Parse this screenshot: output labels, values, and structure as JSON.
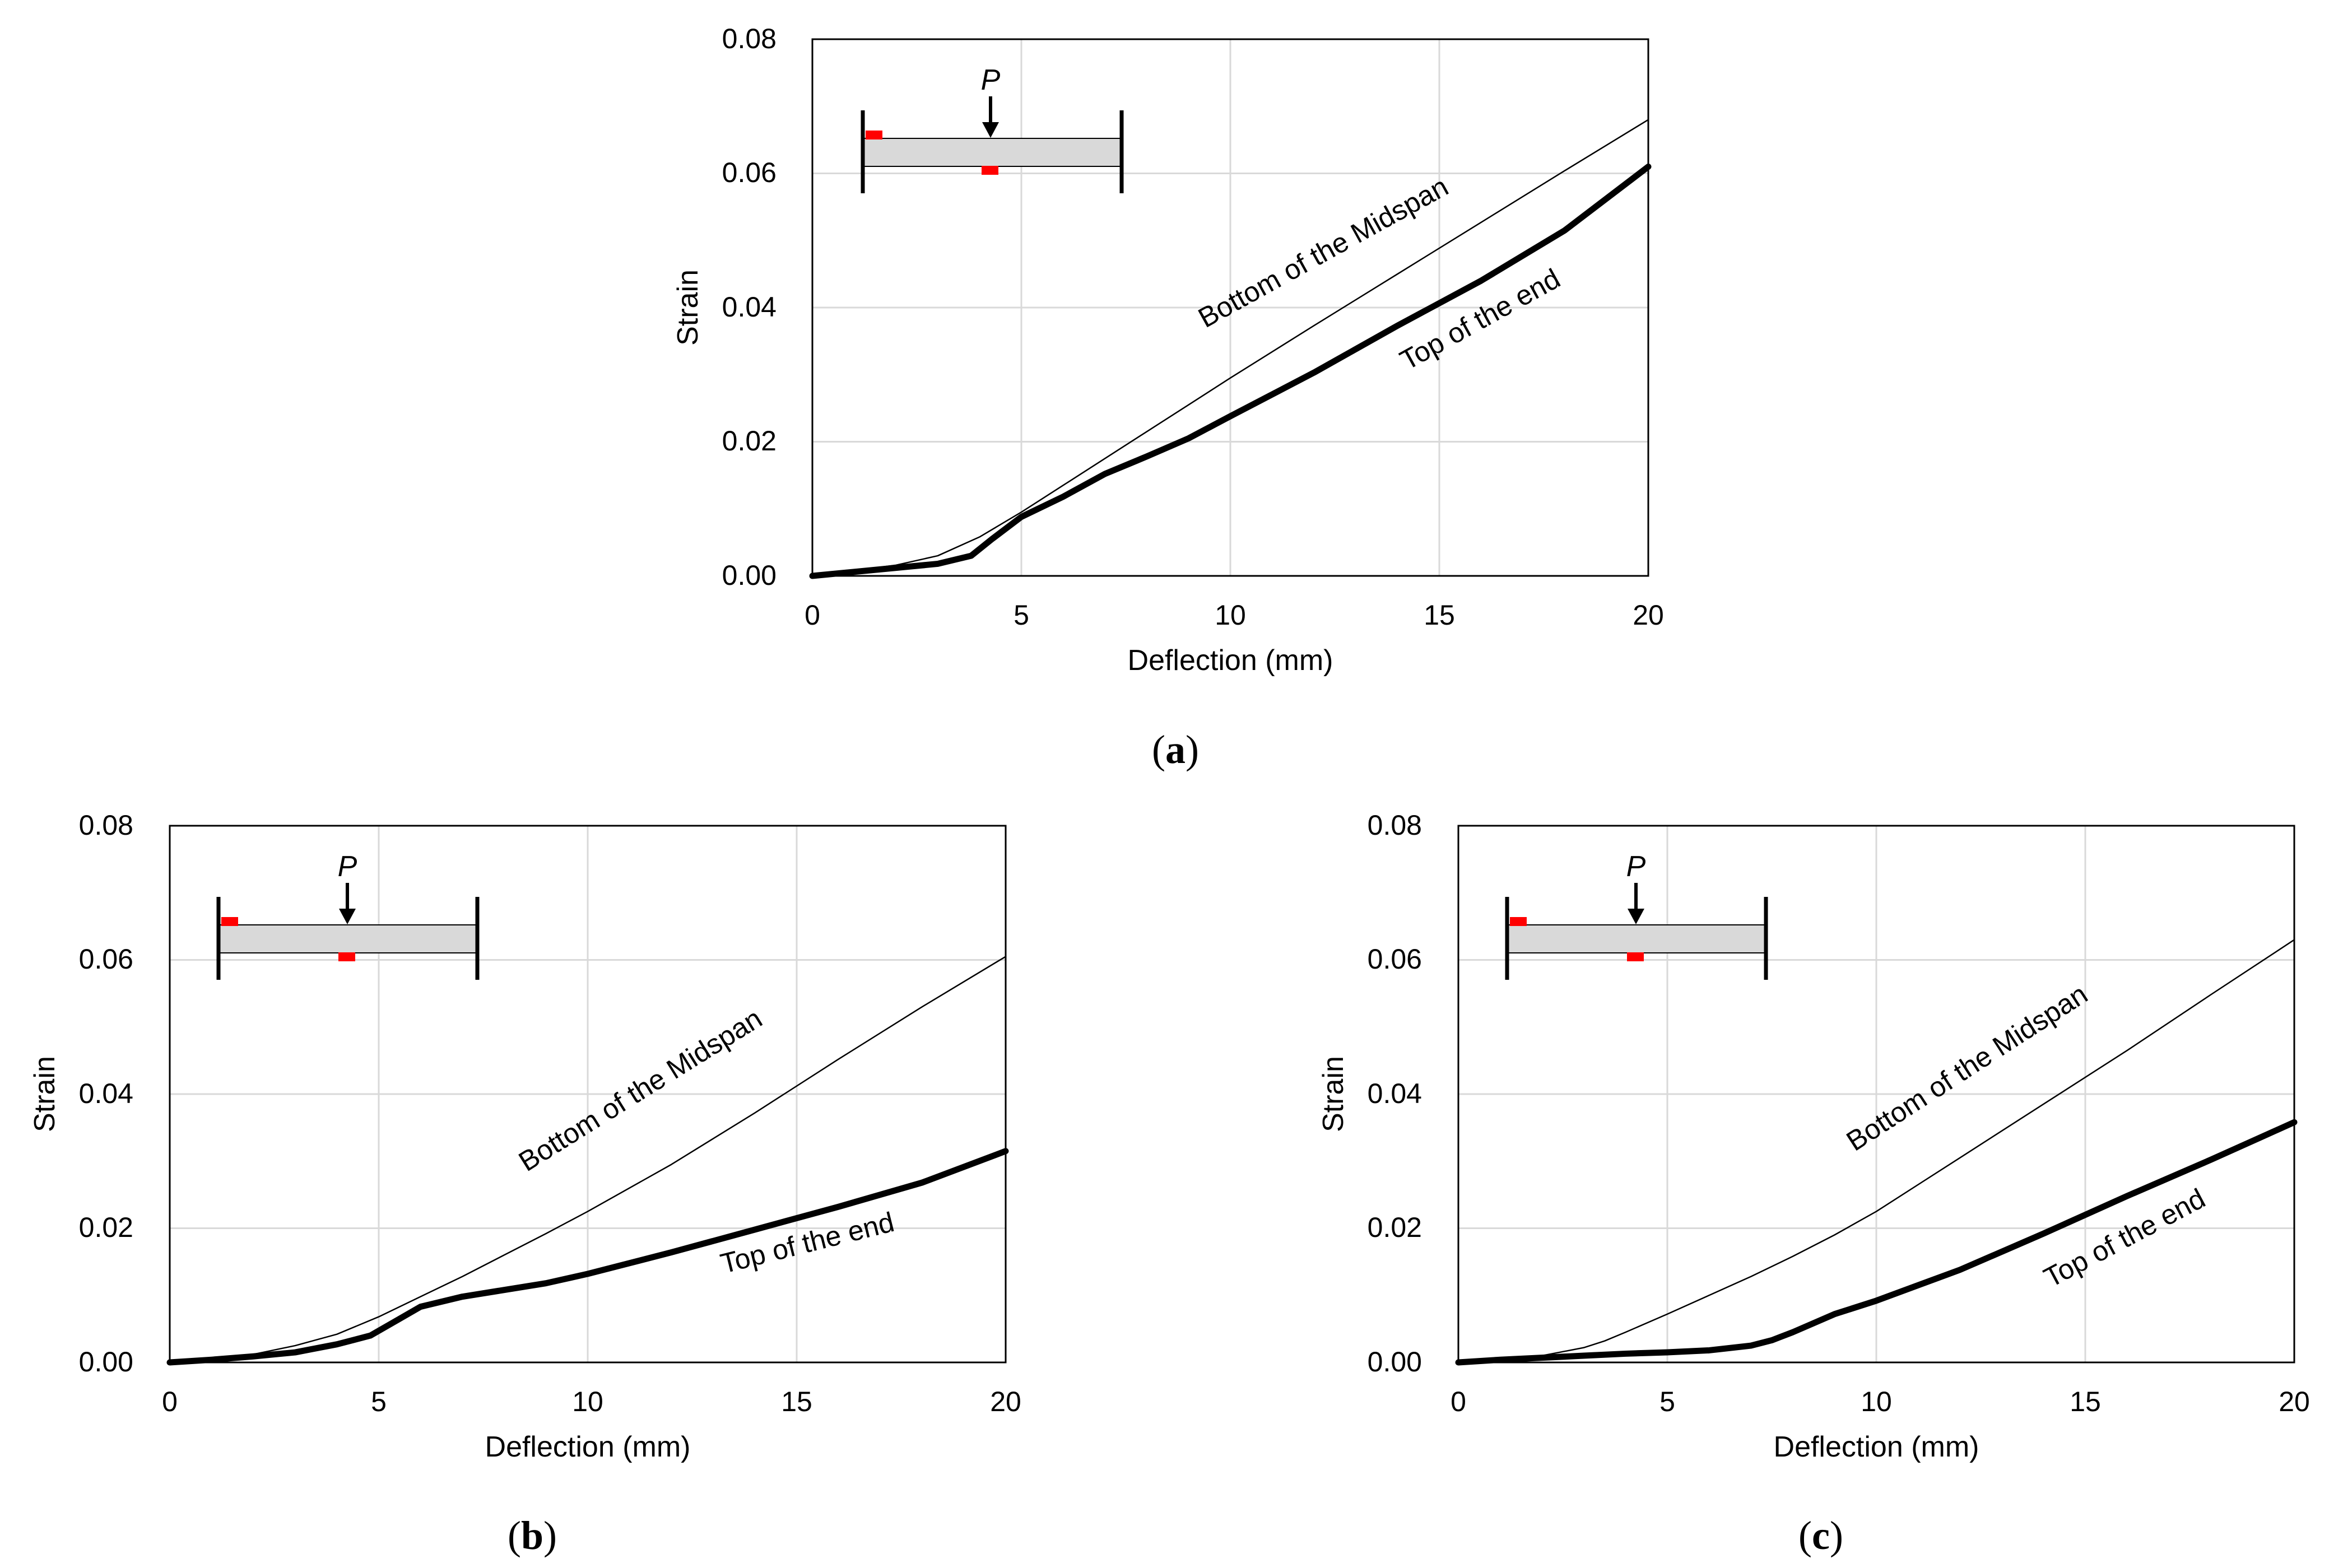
{
  "colors": {
    "grid": "#d9d9d9",
    "line": "#000000",
    "beam_fill": "#d9d9d9",
    "gauge": "#ff0000"
  },
  "chart_data": [
    {
      "id": "a",
      "type": "line",
      "caption": "a",
      "xlabel": "Deflection (mm)",
      "ylabel": "Strain",
      "xlim": [
        0,
        20
      ],
      "ylim": [
        0,
        0.08
      ],
      "xticks": [
        0,
        5,
        10,
        15,
        20
      ],
      "yticks": [
        0,
        0.02,
        0.04,
        0.06,
        0.08
      ],
      "xtick_labels": [
        "0",
        "5",
        "10",
        "15",
        "20"
      ],
      "ytick_labels": [
        "0.00",
        "0.02",
        "0.04",
        "0.06",
        "0.08"
      ],
      "grid": true,
      "inset": {
        "load_label": "P"
      },
      "series": [
        {
          "name": "Bottom of the Midspan",
          "style": "thin",
          "x": [
            0,
            1,
            2,
            3,
            4,
            5,
            6,
            7,
            8,
            9,
            10,
            12,
            14,
            16,
            18,
            20
          ],
          "y": [
            0,
            0.0008,
            0.0016,
            0.003,
            0.0058,
            0.0095,
            0.0135,
            0.0175,
            0.0215,
            0.0255,
            0.0295,
            0.0373,
            0.045,
            0.0527,
            0.0604,
            0.068
          ]
        },
        {
          "name": "Top of the end",
          "style": "thick",
          "x": [
            0,
            1,
            2,
            3,
            3.8,
            4.3,
            5,
            6,
            7,
            8,
            9,
            10,
            12,
            14,
            16,
            18,
            20
          ],
          "y": [
            0,
            0.0006,
            0.0012,
            0.0018,
            0.003,
            0.0055,
            0.0088,
            0.0118,
            0.0152,
            0.0178,
            0.0205,
            0.0238,
            0.0303,
            0.0373,
            0.044,
            0.0515,
            0.061
          ]
        }
      ],
      "annotations": [
        "Bottom of the Midspan",
        "Top of the end"
      ]
    },
    {
      "id": "b",
      "type": "line",
      "caption": "b",
      "xlabel": "Deflection (mm)",
      "ylabel": "Strain",
      "xlim": [
        0,
        20
      ],
      "ylim": [
        0,
        0.08
      ],
      "xticks": [
        0,
        5,
        10,
        15,
        20
      ],
      "yticks": [
        0,
        0.02,
        0.04,
        0.06,
        0.08
      ],
      "xtick_labels": [
        "0",
        "5",
        "10",
        "15",
        "20"
      ],
      "ytick_labels": [
        "0.00",
        "0.02",
        "0.04",
        "0.06",
        "0.08"
      ],
      "grid": true,
      "inset": {
        "load_label": "P"
      },
      "series": [
        {
          "name": "Bottom of the Midspan",
          "style": "thin",
          "x": [
            0,
            1,
            2,
            3,
            4,
            5,
            6,
            7,
            8,
            9,
            10,
            12,
            14,
            16,
            18,
            20
          ],
          "y": [
            0,
            0.0005,
            0.0012,
            0.0025,
            0.0042,
            0.0068,
            0.0098,
            0.0128,
            0.016,
            0.0192,
            0.0225,
            0.0295,
            0.0372,
            0.0452,
            0.053,
            0.0605
          ]
        },
        {
          "name": "Top of the end",
          "style": "thick",
          "x": [
            0,
            1,
            2,
            3,
            4,
            4.8,
            5.5,
            6,
            7,
            8,
            9,
            10,
            12,
            14,
            16,
            18,
            20
          ],
          "y": [
            0,
            0.0004,
            0.0009,
            0.0015,
            0.0027,
            0.004,
            0.0065,
            0.0083,
            0.0098,
            0.0108,
            0.0118,
            0.0132,
            0.0164,
            0.0198,
            0.0232,
            0.0268,
            0.0315
          ]
        }
      ],
      "annotations": [
        "Bottom of the Midspan",
        "Top of the end"
      ]
    },
    {
      "id": "c",
      "type": "line",
      "caption": "c",
      "xlabel": "Deflection (mm)",
      "ylabel": "Strain",
      "xlim": [
        0,
        20
      ],
      "ylim": [
        0,
        0.08
      ],
      "xticks": [
        0,
        5,
        10,
        15,
        20
      ],
      "yticks": [
        0,
        0.02,
        0.04,
        0.06,
        0.08
      ],
      "xtick_labels": [
        "0",
        "5",
        "10",
        "15",
        "20"
      ],
      "ytick_labels": [
        "0.00",
        "0.02",
        "0.04",
        "0.06",
        "0.08"
      ],
      "grid": true,
      "inset": {
        "load_label": "P"
      },
      "series": [
        {
          "name": "Bottom of the Midspan",
          "style": "thin",
          "x": [
            0,
            1,
            2,
            3,
            3.5,
            4,
            5,
            6,
            7,
            8,
            9,
            10,
            12,
            14,
            16,
            18,
            20
          ],
          "y": [
            0,
            0.0004,
            0.001,
            0.0022,
            0.0032,
            0.0045,
            0.0072,
            0.01,
            0.0128,
            0.0158,
            0.019,
            0.0225,
            0.0305,
            0.0385,
            0.0465,
            0.0548,
            0.063
          ]
        },
        {
          "name": "Top of the end",
          "style": "thick",
          "x": [
            0,
            1,
            2,
            3,
            4,
            5,
            6,
            7,
            7.5,
            8,
            9,
            10,
            12,
            14,
            16,
            18,
            20
          ],
          "y": [
            0,
            0.0004,
            0.0007,
            0.001,
            0.0013,
            0.0015,
            0.0018,
            0.0025,
            0.0033,
            0.0045,
            0.0072,
            0.0092,
            0.0138,
            0.0192,
            0.0248,
            0.0302,
            0.0358
          ]
        }
      ],
      "annotations": [
        "Bottom of the Midspan",
        "Top of the end"
      ]
    }
  ]
}
